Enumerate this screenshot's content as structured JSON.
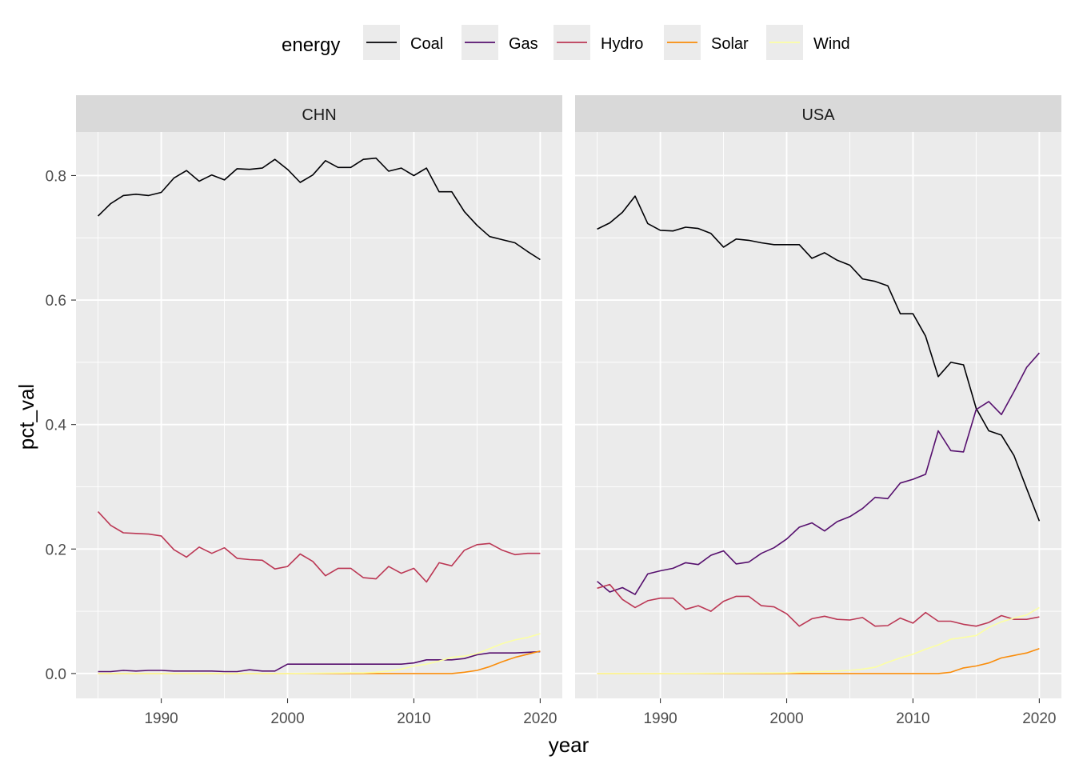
{
  "chart_data": {
    "type": "line",
    "xlabel": "year",
    "ylabel": "pct_val",
    "xlim": [
      1983.25,
      2021.75
    ],
    "ylim": [
      -0.04,
      0.87
    ],
    "x_ticks": [
      1990,
      2000,
      2010,
      2020
    ],
    "y_ticks": [
      0.0,
      0.2,
      0.4,
      0.6,
      0.8
    ],
    "y_tick_labels": [
      "0.0",
      "0.2",
      "0.4",
      "0.6",
      "0.8"
    ],
    "legend": {
      "title": "energy",
      "position": "top",
      "entries": [
        "Coal",
        "Gas",
        "Hydro",
        "Solar",
        "Wind"
      ]
    },
    "colors": {
      "Coal": "#000004",
      "Gas": "#56106E",
      "Hydro": "#BB3754",
      "Solar": "#F98C0A",
      "Wind": "#FCFFA4"
    },
    "panels": [
      {
        "title": "CHN",
        "series": [
          {
            "name": "Coal",
            "x": [
              1985,
              1986,
              1987,
              1988,
              1989,
              1990,
              1991,
              1992,
              1993,
              1994,
              1995,
              1996,
              1997,
              1998,
              1999,
              2000,
              2001,
              2002,
              2003,
              2004,
              2005,
              2006,
              2007,
              2008,
              2009,
              2010,
              2011,
              2012,
              2013,
              2014,
              2015,
              2016,
              2017,
              2018,
              2019,
              2020
            ],
            "values": [
              0.735,
              0.755,
              0.768,
              0.77,
              0.768,
              0.773,
              0.796,
              0.808,
              0.791,
              0.801,
              0.793,
              0.811,
              0.81,
              0.812,
              0.826,
              0.81,
              0.789,
              0.801,
              0.824,
              0.813,
              0.813,
              0.826,
              0.828,
              0.807,
              0.812,
              0.8,
              0.812,
              0.774,
              0.774,
              0.742,
              0.72,
              0.702,
              0.697,
              0.692,
              0.678,
              0.665
            ]
          },
          {
            "name": "Gas",
            "x": [
              1985,
              1986,
              1987,
              1988,
              1989,
              1990,
              1991,
              1992,
              1993,
              1994,
              1995,
              1996,
              1997,
              1998,
              1999,
              2000,
              2001,
              2002,
              2003,
              2004,
              2005,
              2006,
              2007,
              2008,
              2009,
              2010,
              2011,
              2012,
              2013,
              2014,
              2015,
              2016,
              2017,
              2018,
              2019,
              2020
            ],
            "values": [
              0.003,
              0.003,
              0.005,
              0.004,
              0.005,
              0.005,
              0.004,
              0.004,
              0.004,
              0.004,
              0.003,
              0.003,
              0.006,
              0.004,
              0.004,
              0.015,
              0.015,
              0.015,
              0.015,
              0.015,
              0.015,
              0.015,
              0.015,
              0.015,
              0.015,
              0.017,
              0.022,
              0.022,
              0.022,
              0.024,
              0.03,
              0.033,
              0.033,
              0.033,
              0.034,
              0.035
            ]
          },
          {
            "name": "Hydro",
            "x": [
              1985,
              1986,
              1987,
              1988,
              1989,
              1990,
              1991,
              1992,
              1993,
              1994,
              1995,
              1996,
              1997,
              1998,
              1999,
              2000,
              2001,
              2002,
              2003,
              2004,
              2005,
              2006,
              2007,
              2008,
              2009,
              2010,
              2011,
              2012,
              2013,
              2014,
              2015,
              2016,
              2017,
              2018,
              2019,
              2020
            ],
            "values": [
              0.26,
              0.238,
              0.226,
              0.225,
              0.224,
              0.221,
              0.199,
              0.187,
              0.203,
              0.193,
              0.202,
              0.185,
              0.183,
              0.182,
              0.168,
              0.172,
              0.192,
              0.18,
              0.157,
              0.169,
              0.169,
              0.154,
              0.152,
              0.172,
              0.161,
              0.169,
              0.147,
              0.178,
              0.173,
              0.198,
              0.207,
              0.209,
              0.198,
              0.191,
              0.193,
              0.193
            ]
          },
          {
            "name": "Solar",
            "x": [
              1985,
              1990,
              2000,
              2005,
              2006,
              2007,
              2008,
              2009,
              2010,
              2011,
              2012,
              2013,
              2014,
              2015,
              2016,
              2017,
              2018,
              2019,
              2020
            ],
            "values": [
              0.0,
              0.0,
              0.0,
              0.0,
              0.0,
              0.0,
              0.0,
              0.0,
              0.0,
              0.0,
              0.0,
              0.0,
              0.002,
              0.005,
              0.011,
              0.019,
              0.026,
              0.031,
              0.036
            ]
          },
          {
            "name": "Wind",
            "x": [
              1985,
              1990,
              2000,
              2005,
              2006,
              2007,
              2008,
              2009,
              2010,
              2011,
              2012,
              2013,
              2014,
              2015,
              2016,
              2017,
              2018,
              2019,
              2020
            ],
            "values": [
              0.0,
              0.0,
              0.0,
              0.001,
              0.001,
              0.002,
              0.004,
              0.007,
              0.012,
              0.015,
              0.02,
              0.026,
              0.028,
              0.032,
              0.04,
              0.048,
              0.054,
              0.058,
              0.064
            ]
          }
        ]
      },
      {
        "title": "USA",
        "series": [
          {
            "name": "Coal",
            "x": [
              1985,
              1986,
              1987,
              1988,
              1989,
              1990,
              1991,
              1992,
              1993,
              1994,
              1995,
              1996,
              1997,
              1998,
              1999,
              2000,
              2001,
              2002,
              2003,
              2004,
              2005,
              2006,
              2007,
              2008,
              2009,
              2010,
              2011,
              2012,
              2013,
              2014,
              2015,
              2016,
              2017,
              2018,
              2019,
              2020
            ],
            "values": [
              0.714,
              0.724,
              0.741,
              0.767,
              0.723,
              0.712,
              0.711,
              0.717,
              0.715,
              0.707,
              0.685,
              0.698,
              0.696,
              0.692,
              0.689,
              0.689,
              0.689,
              0.667,
              0.676,
              0.664,
              0.656,
              0.634,
              0.63,
              0.623,
              0.578,
              0.578,
              0.542,
              0.477,
              0.5,
              0.496,
              0.426,
              0.39,
              0.383,
              0.35,
              0.297,
              0.245
            ]
          },
          {
            "name": "Gas",
            "x": [
              1985,
              1986,
              1987,
              1988,
              1989,
              1990,
              1991,
              1992,
              1993,
              1994,
              1995,
              1996,
              1997,
              1998,
              1999,
              2000,
              2001,
              2002,
              2003,
              2004,
              2005,
              2006,
              2007,
              2008,
              2009,
              2010,
              2011,
              2012,
              2013,
              2014,
              2015,
              2016,
              2017,
              2018,
              2019,
              2020
            ],
            "values": [
              0.148,
              0.131,
              0.138,
              0.127,
              0.16,
              0.165,
              0.169,
              0.178,
              0.175,
              0.19,
              0.197,
              0.176,
              0.179,
              0.193,
              0.202,
              0.216,
              0.235,
              0.242,
              0.229,
              0.244,
              0.252,
              0.265,
              0.283,
              0.281,
              0.306,
              0.312,
              0.32,
              0.39,
              0.358,
              0.356,
              0.424,
              0.437,
              0.416,
              0.453,
              0.492,
              0.515
            ]
          },
          {
            "name": "Hydro",
            "x": [
              1985,
              1986,
              1987,
              1988,
              1989,
              1990,
              1991,
              1992,
              1993,
              1994,
              1995,
              1996,
              1997,
              1998,
              1999,
              2000,
              2001,
              2002,
              2003,
              2004,
              2005,
              2006,
              2007,
              2008,
              2009,
              2010,
              2011,
              2012,
              2013,
              2014,
              2015,
              2016,
              2017,
              2018,
              2019,
              2020
            ],
            "values": [
              0.137,
              0.143,
              0.119,
              0.106,
              0.117,
              0.121,
              0.121,
              0.103,
              0.109,
              0.1,
              0.116,
              0.124,
              0.124,
              0.109,
              0.107,
              0.096,
              0.076,
              0.088,
              0.092,
              0.087,
              0.086,
              0.09,
              0.076,
              0.077,
              0.089,
              0.081,
              0.098,
              0.084,
              0.084,
              0.079,
              0.076,
              0.082,
              0.093,
              0.087,
              0.087,
              0.091
            ]
          },
          {
            "name": "Solar",
            "x": [
              1985,
              1990,
              2000,
              2005,
              2008,
              2011,
              2012,
              2013,
              2014,
              2015,
              2016,
              2017,
              2018,
              2019,
              2020
            ],
            "values": [
              0.0,
              0.0,
              0.0,
              0.0,
              0.0,
              0.0,
              0.0,
              0.002,
              0.009,
              0.012,
              0.017,
              0.025,
              0.029,
              0.033,
              0.04
            ]
          },
          {
            "name": "Wind",
            "x": [
              1985,
              1990,
              2000,
              2001,
              2004,
              2005,
              2006,
              2007,
              2008,
              2009,
              2010,
              2011,
              2012,
              2013,
              2014,
              2015,
              2016,
              2017,
              2018,
              2019,
              2020
            ],
            "values": [
              0.0,
              0.0,
              0.001,
              0.002,
              0.004,
              0.005,
              0.007,
              0.01,
              0.018,
              0.025,
              0.031,
              0.039,
              0.046,
              0.055,
              0.058,
              0.061,
              0.074,
              0.083,
              0.089,
              0.094,
              0.106
            ]
          }
        ]
      }
    ]
  }
}
